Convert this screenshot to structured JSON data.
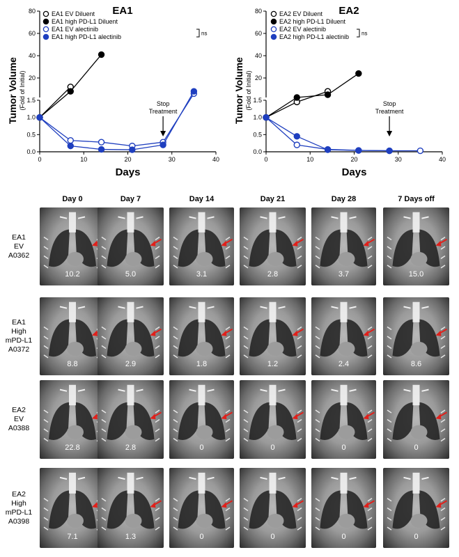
{
  "chart_data": [
    {
      "type": "line",
      "title": "EA1",
      "xlabel": "Days",
      "ylabel": "Tumor Volume",
      "ylabel_sub": "(Fold of Initial)",
      "x_ticks": [
        0,
        10,
        20,
        30,
        40
      ],
      "y_ticks_lower": [
        "0.0",
        "0.5",
        "1.0",
        "1.5"
      ],
      "y_ticks_upper": [
        "20",
        "40",
        "60",
        "80"
      ],
      "ylim_lower": [
        0,
        1.5
      ],
      "ylim_upper": [
        0,
        80
      ],
      "xlim": [
        0,
        40
      ],
      "annotation": "Stop\nTreatment",
      "annotation_x": 28,
      "ns_label": "ns",
      "series": [
        {
          "name": "EA1 EV Diluent",
          "marker": "open",
          "color": "#000000",
          "x": [
            0,
            7
          ],
          "y": [
            1.0,
            12
          ]
        },
        {
          "name": "EA1 high PD-L1 Diluent",
          "marker": "filled",
          "color": "#000000",
          "x": [
            0,
            7,
            14
          ],
          "y": [
            1.0,
            8,
            41
          ]
        },
        {
          "name": "EA1 EV alectinib",
          "marker": "open",
          "color": "#1f3fbf",
          "x": [
            0,
            7,
            14,
            21,
            28,
            35
          ],
          "y": [
            1.0,
            0.33,
            0.28,
            0.17,
            0.28,
            6
          ]
        },
        {
          "name": "EA1 high PD-L1 alectinib",
          "marker": "filled",
          "color": "#1f3fbf",
          "x": [
            0,
            7,
            14,
            21,
            28,
            35
          ],
          "y": [
            1.0,
            0.17,
            0.07,
            0.06,
            0.2,
            8
          ]
        }
      ]
    },
    {
      "type": "line",
      "title": "EA2",
      "xlabel": "Days",
      "ylabel": "Tumor Volume",
      "ylabel_sub": "(Fold of Initial)",
      "x_ticks": [
        0,
        10,
        20,
        30,
        40
      ],
      "y_ticks_lower": [
        "0.0",
        "0.5",
        "1.0",
        "1.5"
      ],
      "y_ticks_upper": [
        "20",
        "40",
        "60",
        "80"
      ],
      "ylim_lower": [
        0,
        1.5
      ],
      "ylim_upper": [
        0,
        80
      ],
      "xlim": [
        0,
        40
      ],
      "annotation": "Stop\nTreatment",
      "annotation_x": 28,
      "ns_label": "ns",
      "series": [
        {
          "name": "EA2 EV Diluent",
          "marker": "open",
          "color": "#000000",
          "x": [
            0,
            7,
            14
          ],
          "y": [
            1.0,
            1.45,
            8
          ]
        },
        {
          "name": "EA2 high PD-L1 Diluent",
          "marker": "filled",
          "color": "#000000",
          "x": [
            0,
            7,
            14,
            21
          ],
          "y": [
            1.0,
            2.5,
            5,
            24
          ]
        },
        {
          "name": "EA2 EV alectinib",
          "marker": "open",
          "color": "#1f3fbf",
          "x": [
            0,
            7,
            14,
            21,
            28,
            35
          ],
          "y": [
            1.0,
            0.2,
            0.07,
            0.04,
            0.03,
            0.03
          ]
        },
        {
          "name": "EA2 high PD-L1 alectinib",
          "marker": "filled",
          "color": "#1f3fbf",
          "x": [
            0,
            7,
            14,
            21,
            28
          ],
          "y": [
            1.0,
            0.45,
            0.06,
            0.04,
            0.03
          ]
        }
      ]
    }
  ],
  "ct_panel": {
    "columns": [
      "Day 0",
      "Day 7",
      "Day 14",
      "Day 21",
      "Day 28",
      "7 Days off"
    ],
    "rows": [
      {
        "label": [
          "EA1",
          "EV",
          "A0362"
        ],
        "values": [
          "10.2",
          "5.0",
          "3.1",
          "2.8",
          "3.7",
          "15.0"
        ]
      },
      {
        "label": [
          "EA1",
          "High",
          "mPD-L1",
          "A0372"
        ],
        "values": [
          "8.8",
          "2.9",
          "1.8",
          "1.2",
          "2.4",
          "8.6"
        ]
      },
      {
        "label": [
          "EA2",
          "EV",
          "A0388"
        ],
        "values": [
          "22.8",
          "2.8",
          "0",
          "0",
          "0",
          "0"
        ]
      },
      {
        "label": [
          "EA2",
          "High",
          "mPD-L1",
          "A0398"
        ],
        "values": [
          "7.1",
          "1.3",
          "0",
          "0",
          "0",
          "0"
        ]
      }
    ],
    "arrow_color": "#e0201b"
  }
}
